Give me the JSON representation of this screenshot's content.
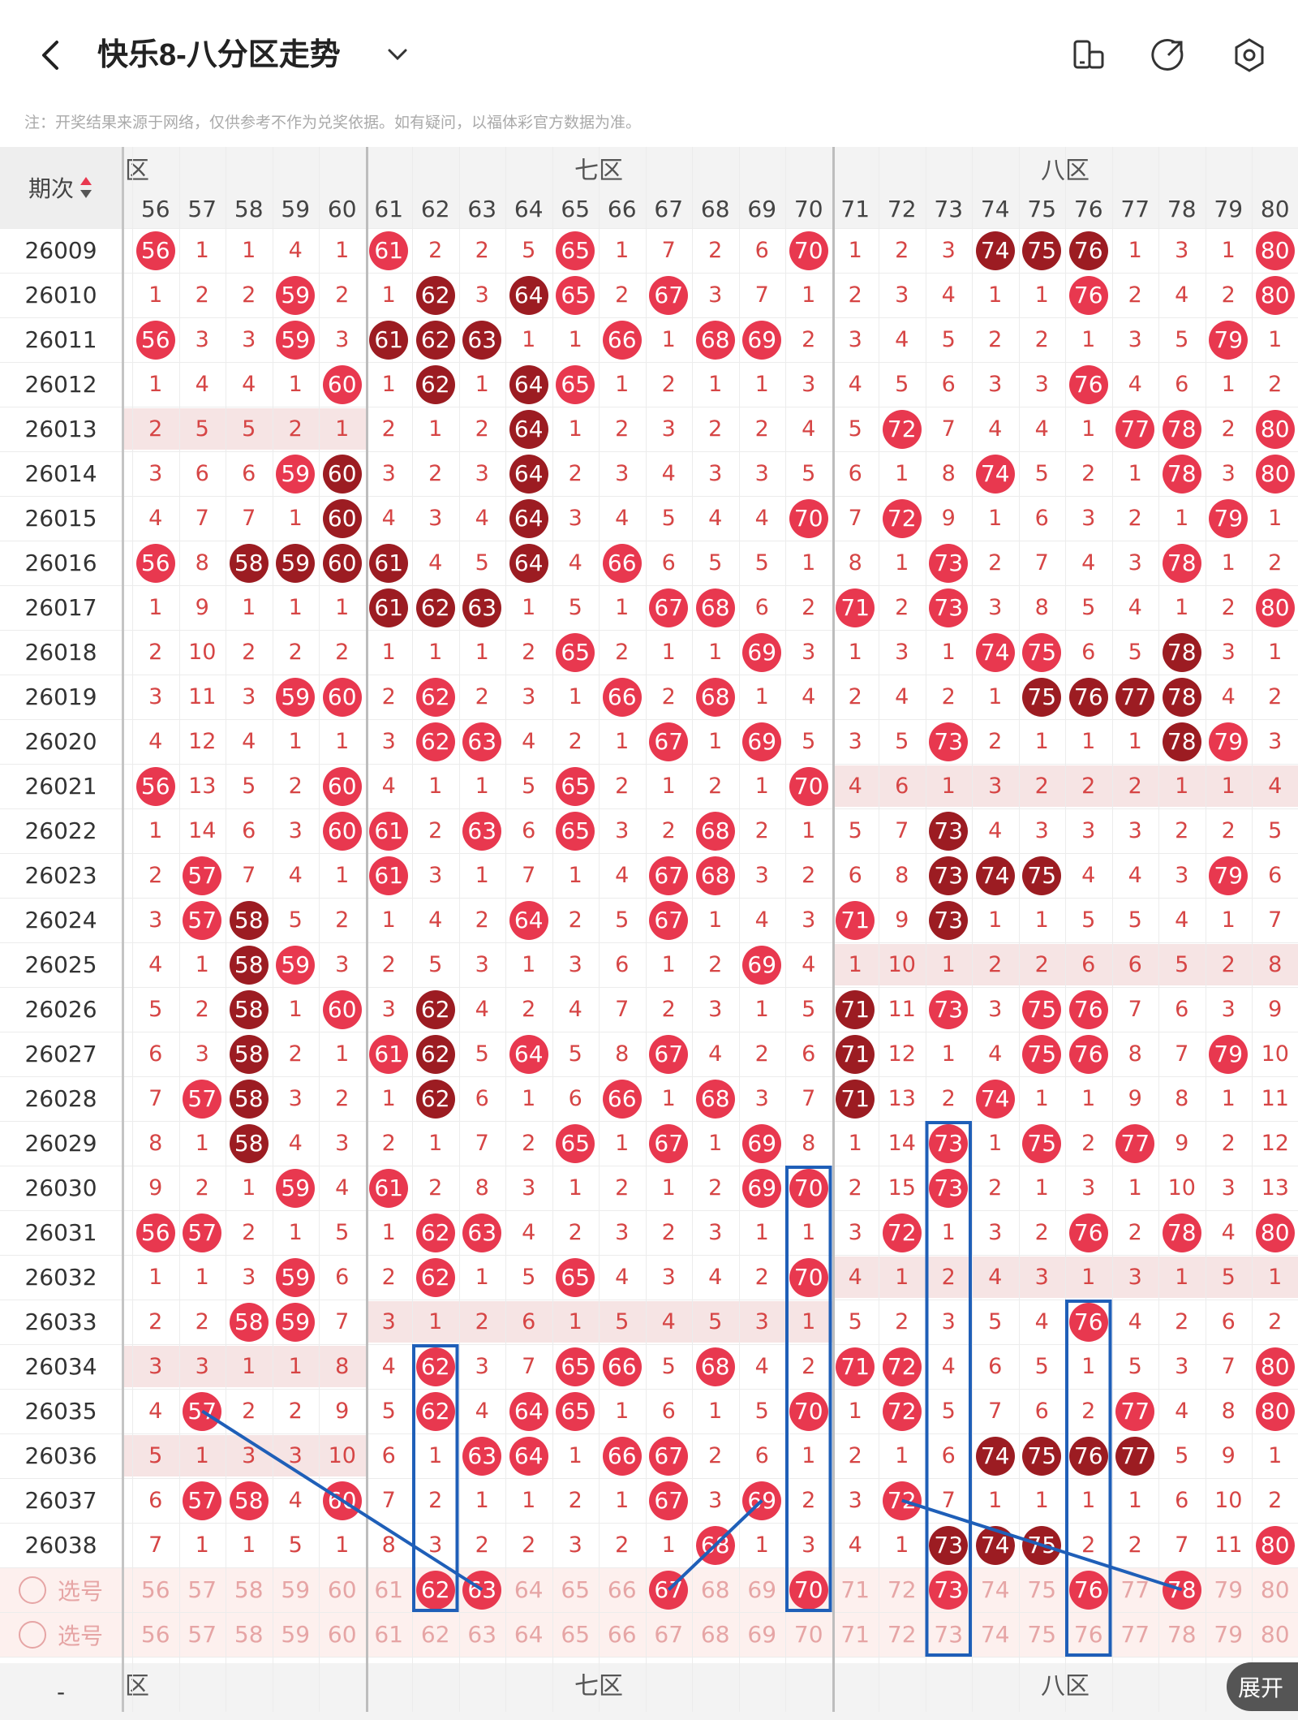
{
  "header": {
    "title": "快乐8-八分区走势",
    "back_icon": "back-arrow-icon",
    "dropdown_icon": "chevron-down-icon",
    "layout_icon": "layout-toggle-icon",
    "share_icon": "share-icon",
    "settings_icon": "settings-icon"
  },
  "notice": "注：开奖结果来源于网络，仅供参考不作为兑奖依据。如有疑问，以福体彩官方数据为准。",
  "table": {
    "issue_header": "期次",
    "sort_icon": "sort-updown-icon",
    "zones": [
      "六区",
      "七区",
      "八区"
    ],
    "visible_zone_labels": [
      "区",
      "七区",
      "八区"
    ],
    "first_col": 56,
    "columns": [
      56,
      57,
      58,
      59,
      60,
      61,
      62,
      63,
      64,
      65,
      66,
      67,
      68,
      69,
      70,
      71,
      72,
      73,
      74,
      75,
      76,
      77,
      78,
      79,
      80
    ],
    "rows": [
      {
        "issue": "26009",
        "v": [
          -56,
          1,
          1,
          4,
          1,
          -61,
          2,
          2,
          5,
          -65,
          1,
          7,
          2,
          6,
          -70,
          1,
          2,
          3,
          -74,
          -75,
          -76,
          1,
          3,
          1,
          -80
        ],
        "dark": [
          74,
          75,
          76
        ]
      },
      {
        "issue": "26010",
        "v": [
          1,
          2,
          2,
          -59,
          2,
          1,
          -62,
          3,
          -64,
          -65,
          2,
          -67,
          3,
          7,
          1,
          2,
          3,
          4,
          1,
          1,
          -76,
          2,
          4,
          2,
          -80
        ],
        "dark": [
          62,
          64
        ]
      },
      {
        "issue": "26011",
        "v": [
          -56,
          3,
          3,
          -59,
          3,
          -61,
          -62,
          -63,
          1,
          1,
          -66,
          1,
          -68,
          -69,
          2,
          3,
          4,
          5,
          2,
          2,
          1,
          3,
          5,
          -79,
          1
        ],
        "dark": [
          61,
          62,
          63
        ]
      },
      {
        "issue": "26012",
        "v": [
          1,
          4,
          4,
          1,
          -60,
          1,
          -62,
          1,
          -64,
          -65,
          1,
          2,
          1,
          1,
          3,
          4,
          5,
          6,
          3,
          3,
          -76,
          4,
          6,
          1,
          2
        ],
        "dark": [
          62,
          64
        ]
      },
      {
        "issue": "26013",
        "v": [
          2,
          5,
          5,
          2,
          1,
          2,
          1,
          2,
          -64,
          1,
          2,
          3,
          2,
          2,
          4,
          5,
          -72,
          7,
          4,
          4,
          1,
          -77,
          -78,
          2,
          -80
        ],
        "dark": [
          64
        ],
        "band": "6"
      },
      {
        "issue": "26014",
        "v": [
          3,
          6,
          6,
          -59,
          -60,
          3,
          2,
          3,
          -64,
          2,
          3,
          4,
          3,
          3,
          5,
          6,
          1,
          8,
          -74,
          5,
          2,
          1,
          -78,
          3,
          -80
        ],
        "dark": [
          60,
          64
        ]
      },
      {
        "issue": "26015",
        "v": [
          4,
          7,
          7,
          1,
          -60,
          4,
          3,
          4,
          -64,
          3,
          4,
          5,
          4,
          4,
          -70,
          7,
          -72,
          9,
          1,
          6,
          3,
          2,
          1,
          -79,
          1
        ],
        "dark": [
          60,
          64
        ]
      },
      {
        "issue": "26016",
        "v": [
          -56,
          8,
          -58,
          -59,
          -60,
          -61,
          4,
          5,
          -64,
          4,
          -66,
          6,
          5,
          5,
          1,
          8,
          1,
          -73,
          2,
          7,
          4,
          3,
          -78,
          1,
          2
        ],
        "dark": [
          58,
          59,
          60,
          61,
          64
        ]
      },
      {
        "issue": "26017",
        "v": [
          1,
          9,
          1,
          1,
          1,
          -61,
          -62,
          -63,
          1,
          5,
          1,
          -67,
          -68,
          6,
          2,
          -71,
          2,
          -73,
          3,
          8,
          5,
          4,
          1,
          2,
          -80
        ],
        "dark": [
          61,
          62,
          63
        ]
      },
      {
        "issue": "26018",
        "v": [
          2,
          10,
          2,
          2,
          2,
          1,
          1,
          1,
          2,
          -65,
          2,
          1,
          1,
          -69,
          3,
          1,
          3,
          1,
          -74,
          -75,
          6,
          5,
          -78,
          3,
          1
        ],
        "dark": [
          78
        ]
      },
      {
        "issue": "26019",
        "v": [
          3,
          11,
          3,
          -59,
          -60,
          2,
          -62,
          2,
          3,
          1,
          -66,
          2,
          -68,
          1,
          4,
          2,
          4,
          2,
          1,
          -75,
          -76,
          -77,
          -78,
          4,
          2
        ],
        "dark": [
          75,
          76,
          77,
          78
        ]
      },
      {
        "issue": "26020",
        "v": [
          4,
          12,
          4,
          1,
          1,
          3,
          -62,
          -63,
          4,
          2,
          1,
          -67,
          1,
          -69,
          5,
          3,
          5,
          -73,
          2,
          1,
          1,
          1,
          -78,
          -79,
          3
        ],
        "dark": [
          78
        ]
      },
      {
        "issue": "26021",
        "v": [
          -56,
          13,
          5,
          2,
          -60,
          4,
          1,
          1,
          5,
          -65,
          2,
          1,
          2,
          1,
          -70,
          4,
          6,
          1,
          3,
          2,
          2,
          2,
          1,
          1,
          4
        ],
        "dark": [],
        "band": "8"
      },
      {
        "issue": "26022",
        "v": [
          1,
          14,
          6,
          3,
          -60,
          -61,
          2,
          -63,
          6,
          -65,
          3,
          2,
          -68,
          2,
          1,
          5,
          7,
          -73,
          4,
          3,
          3,
          3,
          2,
          2,
          5
        ],
        "dark": [
          73
        ]
      },
      {
        "issue": "26023",
        "v": [
          2,
          -57,
          7,
          4,
          1,
          -61,
          3,
          1,
          7,
          1,
          4,
          -67,
          -68,
          3,
          2,
          6,
          8,
          -73,
          -74,
          -75,
          4,
          4,
          3,
          -79,
          6
        ],
        "dark": [
          73,
          74,
          75
        ]
      },
      {
        "issue": "26024",
        "v": [
          3,
          -57,
          -58,
          5,
          2,
          1,
          4,
          2,
          -64,
          2,
          5,
          -67,
          1,
          4,
          3,
          -71,
          9,
          -73,
          1,
          1,
          5,
          5,
          4,
          1,
          7
        ],
        "dark": [
          58,
          73
        ]
      },
      {
        "issue": "26025",
        "v": [
          4,
          1,
          -58,
          -59,
          3,
          2,
          5,
          3,
          1,
          3,
          6,
          1,
          2,
          -69,
          4,
          1,
          10,
          1,
          2,
          2,
          6,
          6,
          5,
          2,
          8
        ],
        "dark": [
          58
        ],
        "band": "8"
      },
      {
        "issue": "26026",
        "v": [
          5,
          2,
          -58,
          1,
          -60,
          3,
          -62,
          4,
          2,
          4,
          7,
          2,
          3,
          1,
          5,
          -71,
          11,
          -73,
          3,
          -75,
          -76,
          7,
          6,
          3,
          9
        ],
        "dark": [
          58,
          62,
          71
        ]
      },
      {
        "issue": "26027",
        "v": [
          6,
          3,
          -58,
          2,
          1,
          -61,
          -62,
          5,
          -64,
          5,
          8,
          -67,
          4,
          2,
          6,
          -71,
          12,
          1,
          4,
          -75,
          -76,
          8,
          7,
          -79,
          10
        ],
        "dark": [
          58,
          62,
          71
        ]
      },
      {
        "issue": "26028",
        "v": [
          7,
          -57,
          -58,
          3,
          2,
          1,
          -62,
          6,
          1,
          6,
          -66,
          1,
          -68,
          3,
          7,
          -71,
          13,
          2,
          -74,
          1,
          1,
          9,
          8,
          1,
          11
        ],
        "dark": [
          58,
          62,
          71
        ]
      },
      {
        "issue": "26029",
        "v": [
          8,
          1,
          -58,
          4,
          3,
          2,
          1,
          7,
          2,
          -65,
          1,
          -67,
          1,
          -69,
          8,
          1,
          14,
          -73,
          1,
          -75,
          2,
          -77,
          9,
          2,
          12
        ],
        "dark": [
          58
        ]
      },
      {
        "issue": "26030",
        "v": [
          9,
          2,
          1,
          -59,
          4,
          -61,
          2,
          8,
          3,
          1,
          2,
          1,
          2,
          -69,
          -70,
          2,
          15,
          -73,
          2,
          1,
          3,
          1,
          10,
          3,
          13
        ],
        "dark": []
      },
      {
        "issue": "26031",
        "v": [
          -56,
          -57,
          2,
          1,
          5,
          1,
          -62,
          -63,
          4,
          2,
          3,
          2,
          3,
          1,
          1,
          3,
          -72,
          1,
          3,
          2,
          -76,
          2,
          -78,
          4,
          -80
        ],
        "dark": []
      },
      {
        "issue": "26032",
        "v": [
          1,
          1,
          3,
          -59,
          6,
          2,
          -62,
          1,
          5,
          -65,
          4,
          3,
          4,
          2,
          -70,
          4,
          1,
          2,
          4,
          3,
          1,
          3,
          1,
          5,
          1
        ],
        "dark": [],
        "band": "8"
      },
      {
        "issue": "26033",
        "v": [
          2,
          2,
          -58,
          -59,
          7,
          3,
          1,
          2,
          6,
          1,
          5,
          4,
          5,
          3,
          1,
          5,
          2,
          3,
          5,
          4,
          -76,
          4,
          2,
          6,
          2
        ],
        "dark": [],
        "band": "7"
      },
      {
        "issue": "26034",
        "v": [
          3,
          3,
          1,
          1,
          8,
          4,
          -62,
          3,
          7,
          -65,
          -66,
          5,
          -68,
          4,
          2,
          -71,
          -72,
          4,
          6,
          5,
          1,
          5,
          3,
          7,
          -80
        ],
        "dark": [],
        "band": "6"
      },
      {
        "issue": "26035",
        "v": [
          4,
          -57,
          2,
          2,
          9,
          5,
          -62,
          4,
          -64,
          -65,
          1,
          6,
          1,
          5,
          -70,
          1,
          -72,
          5,
          7,
          6,
          2,
          -77,
          4,
          8,
          -80
        ],
        "dark": []
      },
      {
        "issue": "26036",
        "v": [
          5,
          1,
          3,
          3,
          10,
          6,
          1,
          -63,
          -64,
          1,
          -66,
          -67,
          2,
          6,
          1,
          2,
          1,
          6,
          -74,
          -75,
          -76,
          -77,
          5,
          9,
          1
        ],
        "dark": [
          74,
          75,
          76,
          77
        ],
        "band": "6"
      },
      {
        "issue": "26037",
        "v": [
          6,
          -57,
          -58,
          4,
          -60,
          7,
          2,
          1,
          1,
          2,
          1,
          -67,
          3,
          -69,
          2,
          3,
          -72,
          7,
          1,
          1,
          1,
          1,
          6,
          10,
          2
        ],
        "dark": []
      },
      {
        "issue": "26038",
        "v": [
          7,
          1,
          1,
          5,
          1,
          8,
          3,
          2,
          2,
          3,
          2,
          1,
          -68,
          1,
          3,
          4,
          1,
          -73,
          -74,
          -75,
          2,
          2,
          7,
          11,
          -80
        ],
        "dark": [
          73,
          74,
          75
        ]
      }
    ],
    "select_label": "选号",
    "select_rows": [
      {
        "balls": [
          62,
          63,
          67,
          70,
          73,
          76,
          78
        ]
      },
      {
        "balls": []
      }
    ]
  },
  "footer": {
    "expand_label": "展开",
    "dash": "-"
  },
  "colors": {
    "ball_red": "#e8384f",
    "ball_dark": "#9c1c22",
    "miss_text": "#d64545",
    "annot_blue": "#1f5fb8",
    "band_pink": "#f6e4e4",
    "select_bg": "#fdf0ee"
  }
}
